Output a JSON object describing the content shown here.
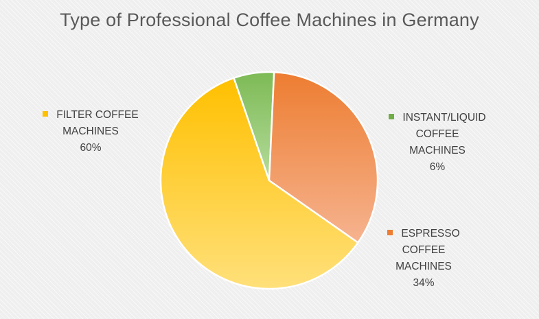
{
  "chart_data": {
    "type": "pie",
    "title": "Type of Professional Coffee Machines in Germany",
    "slices": [
      {
        "label": "FILTER COFFEE MACHINES",
        "label_lines": [
          "FILTER COFFEE",
          "MACHINES"
        ],
        "value": 60,
        "percent_label": "60%",
        "color": "#FFC000"
      },
      {
        "label": "INSTANT/LIQUID COFFEE MACHINES",
        "label_lines": [
          "INSTANT/LIQUID",
          "COFFEE",
          "MACHINES"
        ],
        "value": 6,
        "percent_label": "6%",
        "color": "#70AD47"
      },
      {
        "label": "ESPRESSO COFFEE MACHINES",
        "label_lines": [
          "ESPRESSO",
          "COFFEE",
          "MACHINES"
        ],
        "value": 34,
        "percent_label": "34%",
        "color": "#ED7D31"
      }
    ]
  }
}
